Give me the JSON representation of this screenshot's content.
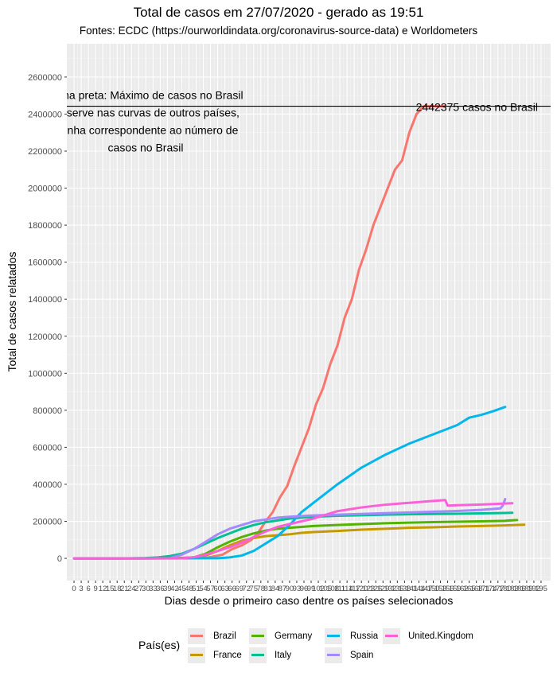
{
  "chart_data": {
    "type": "line",
    "title": "Total de casos em 27/07/2020 - gerado as 19:51",
    "subtitle": "Fontes: ECDC (https://ourworldindata.org/coronavirus-source-data) e Worldometers",
    "xlabel": "Dias desde o primeiro caso dentre os países selecionados",
    "ylabel": "Total de casos relatados",
    "ylim": [
      -120000,
      2780000
    ],
    "xlim": [
      -3,
      199
    ],
    "y_ticks": [
      "0",
      "200000",
      "400000",
      "600000",
      "800000",
      "1000000",
      "1200000",
      "1400000",
      "1600000",
      "1800000",
      "2000000",
      "2200000",
      "2400000",
      "2600000"
    ],
    "x_tick_step": 3,
    "x_tick_max": 195,
    "grid": true,
    "legend_title": "País(es)",
    "legend_position": "bottom",
    "hline": {
      "y": 2442375,
      "label": "2442375 casos no Brasil"
    },
    "annotation_lines": [
      "Linha preta: Máximo de casos no Brasil",
      "Observe nas curvas de outros países,",
      "a linha correspondente ao número de",
      "casos no Brasil"
    ],
    "series": [
      {
        "name": "Brazil",
        "color": "#F8766D",
        "end_label": "2442375",
        "x": [
          0,
          30,
          55,
          62,
          66,
          70,
          74,
          77,
          80,
          83,
          86,
          89,
          92,
          95,
          98,
          101,
          104,
          107,
          110,
          113,
          116,
          119,
          122,
          125,
          128,
          131,
          134,
          137,
          140,
          143,
          146,
          149,
          152,
          155
        ],
        "y": [
          0,
          1,
          2000,
          20000,
          50000,
          70000,
          100000,
          140000,
          200000,
          250000,
          330000,
          390000,
          500000,
          600000,
          700000,
          830000,
          920000,
          1050000,
          1150000,
          1300000,
          1400000,
          1560000,
          1670000,
          1800000,
          1900000,
          2000000,
          2100000,
          2150000,
          2300000,
          2400000,
          2442375,
          2442375,
          2442375,
          2442375
        ]
      },
      {
        "name": "France",
        "color": "#C49A00",
        "x": [
          0,
          20,
          40,
          50,
          55,
          60,
          65,
          70,
          75,
          80,
          85,
          90,
          95,
          100,
          110,
          120,
          130,
          140,
          150,
          160,
          170,
          180,
          188
        ],
        "y": [
          0,
          12,
          100,
          3000,
          15000,
          40000,
          70000,
          95000,
          110000,
          120000,
          125000,
          130000,
          138000,
          142000,
          148000,
          155000,
          160000,
          165000,
          168000,
          172000,
          175000,
          178000,
          182000
        ]
      },
      {
        "name": "Germany",
        "color": "#53B400",
        "x": [
          0,
          20,
          40,
          50,
          55,
          60,
          65,
          70,
          75,
          80,
          85,
          90,
          95,
          100,
          110,
          120,
          130,
          140,
          150,
          160,
          170,
          180,
          185
        ],
        "y": [
          0,
          16,
          200,
          5000,
          25000,
          60000,
          90000,
          115000,
          135000,
          150000,
          160000,
          165000,
          170000,
          175000,
          180000,
          185000,
          190000,
          193000,
          196000,
          198000,
          200000,
          203000,
          207000
        ]
      },
      {
        "name": "Italy",
        "color": "#00C094",
        "x": [
          0,
          20,
          30,
          35,
          40,
          45,
          50,
          55,
          60,
          65,
          70,
          75,
          80,
          85,
          90,
          95,
          100,
          110,
          120,
          130,
          140,
          150,
          160,
          170,
          180,
          183
        ],
        "y": [
          0,
          3,
          2000,
          5000,
          12000,
          25000,
          50000,
          80000,
          110000,
          135000,
          160000,
          180000,
          195000,
          205000,
          215000,
          220000,
          225000,
          230000,
          233000,
          236000,
          238000,
          240000,
          241000,
          243000,
          245000,
          246000
        ]
      },
      {
        "name": "Russia",
        "color": "#00B6EB",
        "x": [
          0,
          40,
          60,
          65,
          70,
          75,
          80,
          85,
          90,
          95,
          100,
          110,
          120,
          130,
          140,
          150,
          160,
          165,
          170,
          175,
          180
        ],
        "y": [
          0,
          3,
          1000,
          5000,
          15000,
          40000,
          80000,
          120000,
          180000,
          250000,
          300000,
          400000,
          490000,
          560000,
          620000,
          670000,
          720000,
          760000,
          775000,
          795000,
          818000
        ]
      },
      {
        "name": "Spain",
        "color": "#A58AFF",
        "x": [
          0,
          20,
          40,
          45,
          50,
          55,
          60,
          65,
          70,
          75,
          80,
          85,
          90,
          100,
          110,
          120,
          130,
          140,
          150,
          160,
          170,
          178,
          179,
          180
        ],
        "y": [
          0,
          2,
          1000,
          20000,
          50000,
          90000,
          130000,
          160000,
          180000,
          200000,
          210000,
          220000,
          225000,
          232000,
          236000,
          240000,
          244000,
          248000,
          252000,
          256000,
          262000,
          270000,
          285000,
          320000
        ]
      },
      {
        "name": "United.Kingdom",
        "color": "#FB61D7",
        "x": [
          0,
          30,
          45,
          50,
          55,
          60,
          65,
          70,
          75,
          80,
          85,
          90,
          95,
          100,
          105,
          110,
          120,
          130,
          140,
          150,
          155,
          156,
          160,
          170,
          180,
          183
        ],
        "y": [
          0,
          2,
          1000,
          6000,
          20000,
          40000,
          60000,
          85000,
          115000,
          145000,
          170000,
          185000,
          200000,
          215000,
          235000,
          255000,
          275000,
          290000,
          300000,
          310000,
          315000,
          285000,
          287000,
          291000,
          296000,
          298000
        ]
      }
    ]
  }
}
